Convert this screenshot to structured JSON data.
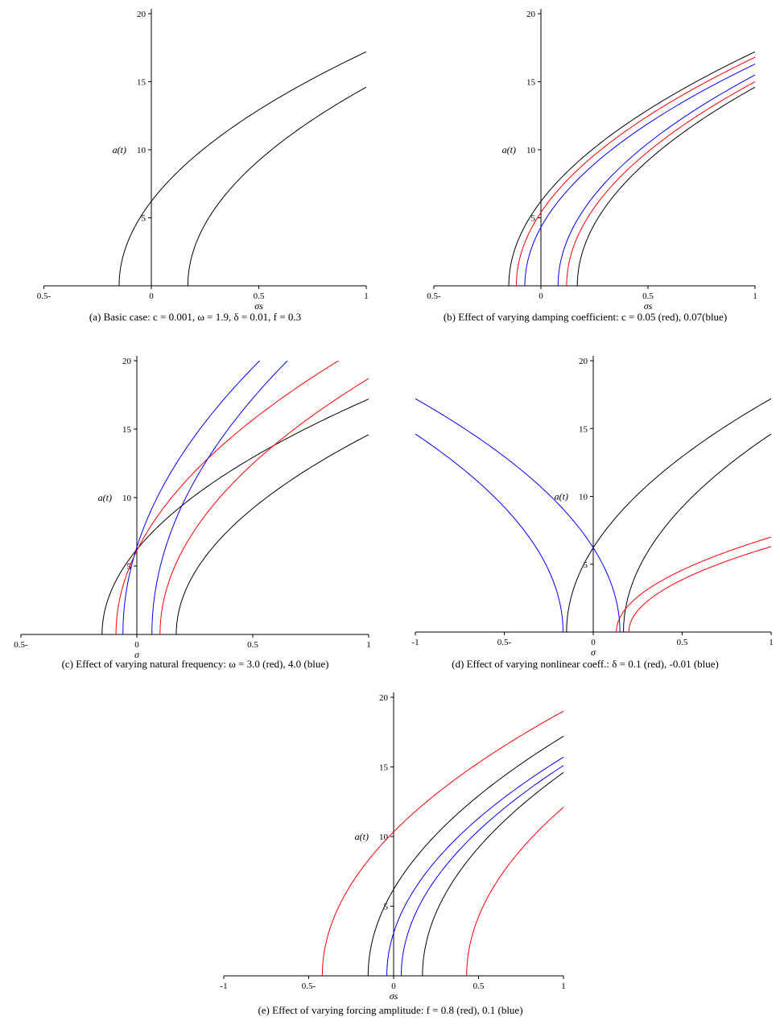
{
  "figure": {
    "background_color": "#ffffff",
    "curve_colors": {
      "base": "#000000",
      "variant1": "#ff0000",
      "variant2": "#0000ff"
    }
  },
  "chart_data": [
    {
      "id": "a",
      "type": "line",
      "caption": "(a) Basic case: c = 0.001, ω = 1.9, δ = 0.01, f = 0.3",
      "xlabel": "σs",
      "ylabel": "a(t)",
      "xlim": [
        -0.5,
        1
      ],
      "ylim": [
        0,
        20
      ],
      "grid": false,
      "xticks": [
        {
          "v": -0.5,
          "label": "0.5-"
        },
        {
          "v": 0,
          "label": "0"
        },
        {
          "v": 0.5,
          "label": "0.5"
        },
        {
          "v": 1,
          "label": "1"
        }
      ],
      "yticks": [
        {
          "v": 5,
          "label": "5"
        },
        {
          "v": 10,
          "label": "10"
        },
        {
          "v": 15,
          "label": "15"
        },
        {
          "v": 20,
          "label": "20"
        }
      ],
      "curves": [
        {
          "name": "black-left",
          "series": "basic case",
          "color": "#000000",
          "foot": -0.15,
          "end": [
            1,
            17.2
          ]
        },
        {
          "name": "black-right",
          "series": "basic case",
          "color": "#000000",
          "foot": 0.17,
          "end": [
            1,
            14.6
          ]
        }
      ]
    },
    {
      "id": "b",
      "type": "line",
      "caption": "(b) Effect of varying damping coefficient: c = 0.05 (red), 0.07(blue)",
      "xlabel": "σs",
      "ylabel": "a(t)",
      "xlim": [
        -0.5,
        1
      ],
      "ylim": [
        0,
        20
      ],
      "grid": false,
      "xticks": [
        {
          "v": -0.5,
          "label": "0.5-"
        },
        {
          "v": 0,
          "label": "0"
        },
        {
          "v": 0.5,
          "label": "0.5"
        },
        {
          "v": 1,
          "label": "1"
        }
      ],
      "yticks": [
        {
          "v": 5,
          "label": "5"
        },
        {
          "v": 10,
          "label": "10"
        },
        {
          "v": 15,
          "label": "15"
        },
        {
          "v": 20,
          "label": "20"
        }
      ],
      "curves": [
        {
          "name": "black-left",
          "series": "basic case",
          "color": "#000000",
          "foot": -0.15,
          "end": [
            1,
            17.2
          ]
        },
        {
          "name": "black-right",
          "series": "basic case",
          "color": "#000000",
          "foot": 0.17,
          "end": [
            1,
            14.6
          ]
        },
        {
          "name": "red-left",
          "series": "c = 0.05",
          "color": "#ff0000",
          "foot": -0.115,
          "end": [
            1,
            16.8
          ]
        },
        {
          "name": "red-right",
          "series": "c = 0.05",
          "color": "#ff0000",
          "foot": 0.12,
          "end": [
            1,
            15.0
          ]
        },
        {
          "name": "blue-left",
          "series": "c = 0.07",
          "color": "#0000ff",
          "foot": -0.075,
          "end": [
            1,
            16.3
          ]
        },
        {
          "name": "blue-right",
          "series": "c = 0.07",
          "color": "#0000ff",
          "foot": 0.08,
          "end": [
            1,
            15.5
          ]
        }
      ]
    },
    {
      "id": "c",
      "type": "line",
      "caption": "(c) Effect of varying natural frequency: ω = 3.0 (red), 4.0 (blue)",
      "xlabel": "σ",
      "ylabel": "a(t)",
      "xlim": [
        -0.5,
        1
      ],
      "ylim": [
        0,
        20
      ],
      "grid": false,
      "xticks": [
        {
          "v": -0.5,
          "label": "0.5-"
        },
        {
          "v": 0,
          "label": "0"
        },
        {
          "v": 0.5,
          "label": "0.5"
        },
        {
          "v": 1,
          "label": "1"
        }
      ],
      "yticks": [
        {
          "v": 5,
          "label": "5"
        },
        {
          "v": 10,
          "label": "10"
        },
        {
          "v": 15,
          "label": "15"
        },
        {
          "v": 20,
          "label": "20"
        }
      ],
      "curves": [
        {
          "name": "black-left",
          "series": "basic case",
          "color": "#000000",
          "foot": -0.15,
          "end": [
            1,
            17.2
          ]
        },
        {
          "name": "black-right",
          "series": "basic case",
          "color": "#000000",
          "foot": 0.17,
          "end": [
            1,
            14.6
          ]
        },
        {
          "name": "red-left",
          "series": "ω = 3.0",
          "color": "#ff0000",
          "foot": -0.09,
          "end": [
            0.87,
            20
          ]
        },
        {
          "name": "red-right",
          "series": "ω = 3.0",
          "color": "#ff0000",
          "foot": 0.1,
          "end": [
            1,
            18.7
          ]
        },
        {
          "name": "blue-left",
          "series": "ω = 4.0",
          "color": "#0000ff",
          "foot": -0.06,
          "end": [
            0.53,
            20
          ]
        },
        {
          "name": "blue-right",
          "series": "ω = 4.0",
          "color": "#0000ff",
          "foot": 0.065,
          "end": [
            0.65,
            20
          ]
        }
      ]
    },
    {
      "id": "d",
      "type": "line",
      "caption": "(d) Effect of varying nonlinear coeff.: δ = 0.1 (red), -0.01 (blue)",
      "xlabel": "σ",
      "ylabel": "a(t)",
      "xlim": [
        -1,
        1
      ],
      "ylim": [
        0,
        20
      ],
      "grid": false,
      "xticks": [
        {
          "v": -1,
          "label": "-1"
        },
        {
          "v": -0.5,
          "label": "0.5-"
        },
        {
          "v": 0,
          "label": "0"
        },
        {
          "v": 0.5,
          "label": "0.5"
        },
        {
          "v": 1,
          "label": "1"
        }
      ],
      "yticks": [
        {
          "v": 5,
          "label": "5"
        },
        {
          "v": 10,
          "label": "10"
        },
        {
          "v": 15,
          "label": "15"
        },
        {
          "v": 20,
          "label": "20"
        }
      ],
      "curves": [
        {
          "name": "black-left",
          "series": "basic case",
          "color": "#000000",
          "foot": -0.15,
          "end": [
            1,
            17.2
          ]
        },
        {
          "name": "black-right",
          "series": "basic case",
          "color": "#000000",
          "foot": 0.17,
          "end": [
            1,
            14.6
          ]
        },
        {
          "name": "red-upper",
          "series": "δ = 0.1",
          "color": "#ff0000",
          "foot": 0.13,
          "end": [
            1,
            7.0
          ]
        },
        {
          "name": "red-lower",
          "series": "δ = 0.1",
          "color": "#ff0000",
          "foot": 0.2,
          "end": [
            1,
            6.3
          ]
        },
        {
          "name": "blue-upper",
          "series": "δ = -0.01",
          "color": "#0000ff",
          "foot": 0.15,
          "end": [
            -1,
            17.2
          ]
        },
        {
          "name": "blue-lower",
          "series": "δ = -0.01",
          "color": "#0000ff",
          "foot": -0.17,
          "end": [
            -1,
            14.6
          ]
        }
      ]
    },
    {
      "id": "e",
      "type": "line",
      "caption": "(e) Effect of varying forcing amplitude: f = 0.8 (red), 0.1 (blue)",
      "xlabel": "σs",
      "ylabel": "a(t)",
      "xlim": [
        -1,
        1
      ],
      "ylim": [
        0,
        20
      ],
      "grid": false,
      "xticks": [
        {
          "v": -1,
          "label": "-1"
        },
        {
          "v": -0.5,
          "label": "0.5-"
        },
        {
          "v": 0,
          "label": "0"
        },
        {
          "v": 0.5,
          "label": "0.5"
        },
        {
          "v": 1,
          "label": "1"
        }
      ],
      "yticks": [
        {
          "v": 5,
          "label": "5"
        },
        {
          "v": 10,
          "label": "10"
        },
        {
          "v": 15,
          "label": "15"
        },
        {
          "v": 20,
          "label": "20"
        }
      ],
      "curves": [
        {
          "name": "red-left",
          "series": "f = 0.8",
          "color": "#ff0000",
          "foot": -0.42,
          "end": [
            1,
            19.0
          ]
        },
        {
          "name": "red-right",
          "series": "f = 0.8",
          "color": "#ff0000",
          "foot": 0.43,
          "end": [
            1,
            12.1
          ]
        },
        {
          "name": "black-left",
          "series": "basic case",
          "color": "#000000",
          "foot": -0.15,
          "end": [
            1,
            17.2
          ]
        },
        {
          "name": "black-right",
          "series": "basic case",
          "color": "#000000",
          "foot": 0.17,
          "end": [
            1,
            14.6
          ]
        },
        {
          "name": "blue-left",
          "series": "f = 0.1",
          "color": "#0000ff",
          "foot": -0.04,
          "end": [
            1,
            15.7
          ]
        },
        {
          "name": "blue-right",
          "series": "f = 0.1",
          "color": "#0000ff",
          "foot": 0.045,
          "end": [
            1,
            15.1
          ]
        }
      ]
    }
  ]
}
